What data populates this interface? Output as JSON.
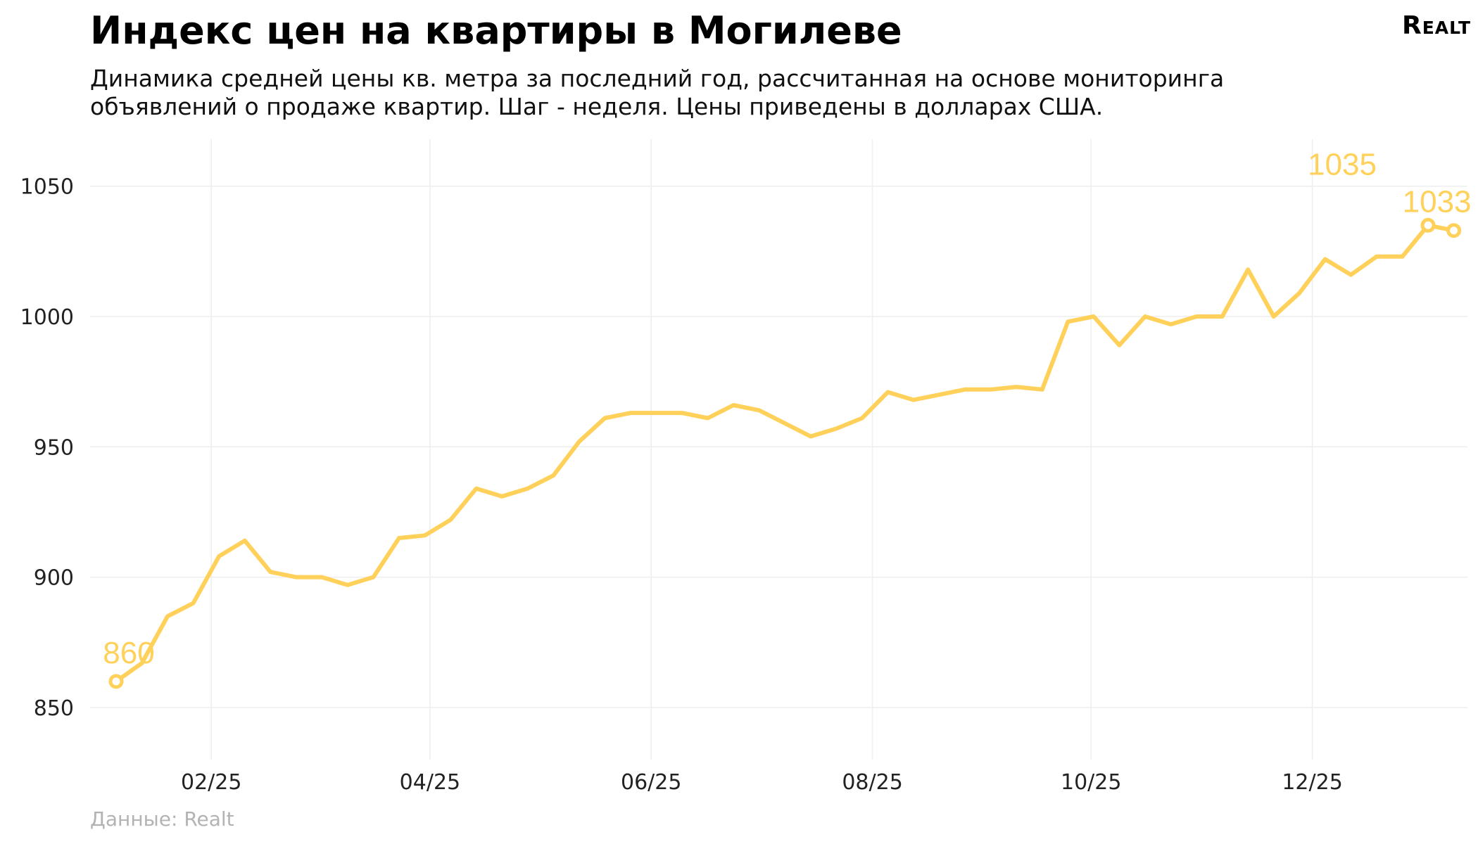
{
  "header": {
    "title": "Индекс цен на квартиры в Могилеве",
    "subtitle_lines": [
      "Динамика средней цены кв. метра за последний год, рассчитанная на основе мониторинга",
      "объявлений о продаже квартир. Шаг - неделя. Цены приведены в долларах США."
    ],
    "logo": "Realt"
  },
  "footer": {
    "source": "Данные: Realt"
  },
  "chart_data": {
    "type": "line",
    "title": "Индекс цен на квартиры в Могилеве",
    "xlabel": "",
    "ylabel": "",
    "ylim": [
      830,
      1068
    ],
    "y_ticks": [
      850,
      900,
      950,
      1000,
      1050
    ],
    "x_ticks": [
      "02/25",
      "04/25",
      "06/25",
      "08/25",
      "10/25",
      "12/25"
    ],
    "x_tick_week_index": [
      3.7,
      12.2,
      20.8,
      29.4,
      37.9,
      46.5
    ],
    "grid": true,
    "line_color": "#FFD15A",
    "series": [
      {
        "name": "",
        "values": [
          860,
          867,
          885,
          890,
          908,
          914,
          902,
          900,
          900,
          897,
          900,
          915,
          916,
          922,
          934,
          931,
          934,
          939,
          952,
          961,
          963,
          963,
          963,
          961,
          966,
          964,
          959,
          954,
          957,
          961,
          971,
          968,
          970,
          972,
          972,
          973,
          972,
          998,
          1000,
          989,
          1000,
          997,
          1000,
          1000,
          1018,
          1000,
          1009,
          1022,
          1016,
          1023,
          1023,
          1035,
          1033
        ]
      }
    ],
    "annotations": [
      {
        "index": 0,
        "text": "860"
      },
      {
        "index": 51,
        "text": "1035"
      },
      {
        "index": 52,
        "text": "1033"
      }
    ]
  }
}
